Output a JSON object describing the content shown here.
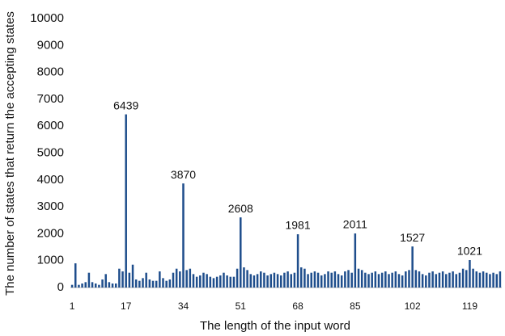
{
  "chart_data": {
    "type": "bar",
    "y_label": "The number of states that return the accepting states",
    "x_label": "The length of the input word",
    "color": "#1f4e8c",
    "categories": [
      "1",
      null,
      null,
      null,
      null,
      null,
      null,
      null,
      null,
      null,
      null,
      null,
      null,
      null,
      null,
      null,
      "17",
      null,
      null,
      null,
      null,
      null,
      null,
      null,
      null,
      null,
      null,
      null,
      null,
      null,
      null,
      null,
      null,
      "34",
      null,
      null,
      null,
      null,
      null,
      null,
      null,
      null,
      null,
      null,
      null,
      null,
      null,
      null,
      null,
      null,
      "51",
      null,
      null,
      null,
      null,
      null,
      null,
      null,
      null,
      null,
      null,
      null,
      null,
      null,
      null,
      null,
      null,
      "68",
      null,
      null,
      null,
      null,
      null,
      null,
      null,
      null,
      null,
      null,
      null,
      null,
      null,
      null,
      null,
      null,
      "85",
      null,
      null,
      null,
      null,
      null,
      null,
      null,
      null,
      null,
      null,
      null,
      null,
      null,
      null,
      null,
      null,
      "102",
      null,
      null,
      null,
      null,
      null,
      null,
      null,
      null,
      null,
      null,
      null,
      null,
      null,
      null,
      null,
      null,
      "119",
      null,
      null,
      null,
      null,
      null,
      null,
      null,
      null,
      null
    ],
    "values": [
      100,
      900,
      100,
      150,
      200,
      550,
      200,
      150,
      100,
      300,
      500,
      200,
      150,
      150,
      700,
      600,
      6439,
      550,
      850,
      300,
      250,
      350,
      550,
      300,
      250,
      250,
      600,
      350,
      250,
      300,
      550,
      700,
      600,
      3870,
      650,
      700,
      500,
      400,
      450,
      550,
      500,
      400,
      350,
      400,
      450,
      550,
      450,
      400,
      400,
      700,
      2608,
      750,
      650,
      500,
      450,
      500,
      600,
      550,
      450,
      500,
      550,
      500,
      450,
      550,
      600,
      500,
      550,
      1981,
      750,
      700,
      500,
      550,
      600,
      550,
      450,
      500,
      600,
      550,
      600,
      500,
      450,
      600,
      650,
      550,
      2011,
      700,
      650,
      550,
      500,
      550,
      600,
      500,
      550,
      600,
      500,
      550,
      600,
      500,
      450,
      600,
      650,
      1527,
      650,
      600,
      500,
      450,
      550,
      600,
      500,
      550,
      600,
      500,
      550,
      600,
      500,
      550,
      700,
      650,
      1021,
      700,
      600,
      550,
      600,
      550,
      500,
      550,
      500,
      600
    ],
    "value_labels": [
      null,
      null,
      null,
      null,
      null,
      null,
      null,
      null,
      null,
      null,
      null,
      null,
      null,
      null,
      null,
      null,
      "6439",
      null,
      null,
      null,
      null,
      null,
      null,
      null,
      null,
      null,
      null,
      null,
      null,
      null,
      null,
      null,
      null,
      "3870",
      null,
      null,
      null,
      null,
      null,
      null,
      null,
      null,
      null,
      null,
      null,
      null,
      null,
      null,
      null,
      null,
      "2608",
      null,
      null,
      null,
      null,
      null,
      null,
      null,
      null,
      null,
      null,
      null,
      null,
      null,
      null,
      null,
      null,
      "1981",
      null,
      null,
      null,
      null,
      null,
      null,
      null,
      null,
      null,
      null,
      null,
      null,
      null,
      null,
      null,
      null,
      "2011",
      null,
      null,
      null,
      null,
      null,
      null,
      null,
      null,
      null,
      null,
      null,
      null,
      null,
      null,
      null,
      null,
      "1527",
      null,
      null,
      null,
      null,
      null,
      null,
      null,
      null,
      null,
      null,
      null,
      null,
      null,
      null,
      null,
      null,
      "1021",
      null,
      null,
      null,
      null,
      null,
      null,
      null,
      null,
      null
    ],
    "ylim": [
      0,
      10000
    ],
    "yticks": [
      0,
      1000,
      2000,
      3000,
      4000,
      5000,
      6000,
      7000,
      8000,
      9000,
      10000
    ],
    "grid": false
  }
}
